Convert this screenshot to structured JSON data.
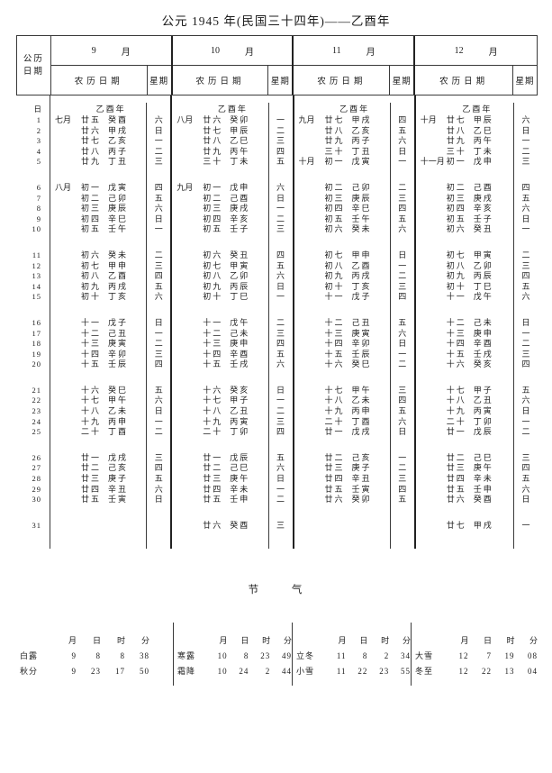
{
  "title": "公元 1945 年(民国三十四年)——乙酉年",
  "table": {
    "corner_line1": "公历",
    "corner_line2": "日期",
    "lunar_date_header": "农历日期",
    "weekday_header": "星期",
    "day_header": "日",
    "year_label": "乙酉年",
    "month_unit": "月",
    "day_numbers": [
      "1",
      "2",
      "3",
      "4",
      "5",
      "6",
      "7",
      "8",
      "9",
      "10",
      "11",
      "12",
      "13",
      "14",
      "15",
      "16",
      "17",
      "18",
      "19",
      "20",
      "21",
      "22",
      "23",
      "24",
      "25",
      "26",
      "27",
      "28",
      "29",
      "30",
      "31"
    ],
    "months": [
      {
        "number": "9",
        "rows": [
          [
            "七月",
            "廿五",
            "癸酉",
            "六"
          ],
          [
            "",
            "廿六",
            "甲戌",
            "日"
          ],
          [
            "",
            "廿七",
            "乙亥",
            "一"
          ],
          [
            "",
            "廿八",
            "丙子",
            "二"
          ],
          [
            "",
            "廿九",
            "丁丑",
            "三"
          ],
          [
            "八月",
            "初一",
            "戊寅",
            "四"
          ],
          [
            "",
            "初二",
            "己卯",
            "五"
          ],
          [
            "",
            "初三",
            "庚辰",
            "六"
          ],
          [
            "",
            "初四",
            "辛巳",
            "日"
          ],
          [
            "",
            "初五",
            "壬午",
            "一"
          ],
          [
            "",
            "初六",
            "癸未",
            "二"
          ],
          [
            "",
            "初七",
            "甲申",
            "三"
          ],
          [
            "",
            "初八",
            "乙酉",
            "四"
          ],
          [
            "",
            "初九",
            "丙戌",
            "五"
          ],
          [
            "",
            "初十",
            "丁亥",
            "六"
          ],
          [
            "",
            "十一",
            "戊子",
            "日"
          ],
          [
            "",
            "十二",
            "己丑",
            "一"
          ],
          [
            "",
            "十三",
            "庚寅",
            "二"
          ],
          [
            "",
            "十四",
            "辛卯",
            "三"
          ],
          [
            "",
            "十五",
            "壬辰",
            "四"
          ],
          [
            "",
            "十六",
            "癸巳",
            "五"
          ],
          [
            "",
            "十七",
            "甲午",
            "六"
          ],
          [
            "",
            "十八",
            "乙未",
            "日"
          ],
          [
            "",
            "十九",
            "丙申",
            "一"
          ],
          [
            "",
            "二十",
            "丁酉",
            "二"
          ],
          [
            "",
            "廿一",
            "戊戌",
            "三"
          ],
          [
            "",
            "廿二",
            "己亥",
            "四"
          ],
          [
            "",
            "廿三",
            "庚子",
            "五"
          ],
          [
            "",
            "廿四",
            "辛丑",
            "六"
          ],
          [
            "",
            "廿五",
            "壬寅",
            "日"
          ],
          [
            "",
            "",
            "",
            ""
          ]
        ]
      },
      {
        "number": "10",
        "rows": [
          [
            "八月",
            "廿六",
            "癸卯",
            "一"
          ],
          [
            "",
            "廿七",
            "甲辰",
            "二"
          ],
          [
            "",
            "廿八",
            "乙巳",
            "三"
          ],
          [
            "",
            "廿九",
            "丙午",
            "四"
          ],
          [
            "",
            "三十",
            "丁未",
            "五"
          ],
          [
            "九月",
            "初一",
            "戊申",
            "六"
          ],
          [
            "",
            "初二",
            "己酉",
            "日"
          ],
          [
            "",
            "初三",
            "庚戌",
            "一"
          ],
          [
            "",
            "初四",
            "辛亥",
            "二"
          ],
          [
            "",
            "初五",
            "壬子",
            "三"
          ],
          [
            "",
            "初六",
            "癸丑",
            "四"
          ],
          [
            "",
            "初七",
            "甲寅",
            "五"
          ],
          [
            "",
            "初八",
            "乙卯",
            "六"
          ],
          [
            "",
            "初九",
            "丙辰",
            "日"
          ],
          [
            "",
            "初十",
            "丁巳",
            "一"
          ],
          [
            "",
            "十一",
            "戊午",
            "二"
          ],
          [
            "",
            "十二",
            "己未",
            "三"
          ],
          [
            "",
            "十三",
            "庚申",
            "四"
          ],
          [
            "",
            "十四",
            "辛酉",
            "五"
          ],
          [
            "",
            "十五",
            "壬戌",
            "六"
          ],
          [
            "",
            "十六",
            "癸亥",
            "日"
          ],
          [
            "",
            "十七",
            "甲子",
            "一"
          ],
          [
            "",
            "十八",
            "乙丑",
            "二"
          ],
          [
            "",
            "十九",
            "丙寅",
            "三"
          ],
          [
            "",
            "二十",
            "丁卯",
            "四"
          ],
          [
            "",
            "廿一",
            "戊辰",
            "五"
          ],
          [
            "",
            "廿二",
            "己巳",
            "六"
          ],
          [
            "",
            "廿三",
            "庚午",
            "日"
          ],
          [
            "",
            "廿四",
            "辛未",
            "一"
          ],
          [
            "",
            "廿五",
            "壬申",
            "二"
          ],
          [
            "",
            "廿六",
            "癸酉",
            "三"
          ]
        ]
      },
      {
        "number": "11",
        "rows": [
          [
            "九月",
            "廿七",
            "甲戌",
            "四"
          ],
          [
            "",
            "廿八",
            "乙亥",
            "五"
          ],
          [
            "",
            "廿九",
            "丙子",
            "六"
          ],
          [
            "",
            "三十",
            "丁丑",
            "日"
          ],
          [
            "十月",
            "初一",
            "戊寅",
            "一"
          ],
          [
            "",
            "初二",
            "己卯",
            "二"
          ],
          [
            "",
            "初三",
            "庚辰",
            "三"
          ],
          [
            "",
            "初四",
            "辛巳",
            "四"
          ],
          [
            "",
            "初五",
            "壬午",
            "五"
          ],
          [
            "",
            "初六",
            "癸未",
            "六"
          ],
          [
            "",
            "初七",
            "甲申",
            "日"
          ],
          [
            "",
            "初八",
            "乙酉",
            "一"
          ],
          [
            "",
            "初九",
            "丙戌",
            "二"
          ],
          [
            "",
            "初十",
            "丁亥",
            "三"
          ],
          [
            "",
            "十一",
            "戊子",
            "四"
          ],
          [
            "",
            "十二",
            "己丑",
            "五"
          ],
          [
            "",
            "十三",
            "庚寅",
            "六"
          ],
          [
            "",
            "十四",
            "辛卯",
            "日"
          ],
          [
            "",
            "十五",
            "壬辰",
            "一"
          ],
          [
            "",
            "十六",
            "癸巳",
            "二"
          ],
          [
            "",
            "十七",
            "甲午",
            "三"
          ],
          [
            "",
            "十八",
            "乙未",
            "四"
          ],
          [
            "",
            "十九",
            "丙申",
            "五"
          ],
          [
            "",
            "二十",
            "丁酉",
            "六"
          ],
          [
            "",
            "廿一",
            "戊戌",
            "日"
          ],
          [
            "",
            "廿二",
            "己亥",
            "一"
          ],
          [
            "",
            "廿三",
            "庚子",
            "二"
          ],
          [
            "",
            "廿四",
            "辛丑",
            "三"
          ],
          [
            "",
            "廿五",
            "壬寅",
            "四"
          ],
          [
            "",
            "廿六",
            "癸卯",
            "五"
          ],
          [
            "",
            "",
            "",
            ""
          ]
        ]
      },
      {
        "number": "12",
        "rows": [
          [
            "十月",
            "廿七",
            "甲辰",
            "六"
          ],
          [
            "",
            "廿八",
            "乙巳",
            "日"
          ],
          [
            "",
            "廿九",
            "丙午",
            "一"
          ],
          [
            "",
            "三十",
            "丁未",
            "二"
          ],
          [
            "十一月",
            "初一",
            "戊申",
            "三"
          ],
          [
            "",
            "初二",
            "己酉",
            "四"
          ],
          [
            "",
            "初三",
            "庚戌",
            "五"
          ],
          [
            "",
            "初四",
            "辛亥",
            "六"
          ],
          [
            "",
            "初五",
            "壬子",
            "日"
          ],
          [
            "",
            "初六",
            "癸丑",
            "一"
          ],
          [
            "",
            "初七",
            "甲寅",
            "二"
          ],
          [
            "",
            "初八",
            "乙卯",
            "三"
          ],
          [
            "",
            "初九",
            "丙辰",
            "四"
          ],
          [
            "",
            "初十",
            "丁巳",
            "五"
          ],
          [
            "",
            "十一",
            "戊午",
            "六"
          ],
          [
            "",
            "十二",
            "己未",
            "日"
          ],
          [
            "",
            "十三",
            "庚申",
            "一"
          ],
          [
            "",
            "十四",
            "辛酉",
            "二"
          ],
          [
            "",
            "十五",
            "壬戌",
            "三"
          ],
          [
            "",
            "十六",
            "癸亥",
            "四"
          ],
          [
            "",
            "十七",
            "甲子",
            "五"
          ],
          [
            "",
            "十八",
            "乙丑",
            "六"
          ],
          [
            "",
            "十九",
            "丙寅",
            "日"
          ],
          [
            "",
            "二十",
            "丁卯",
            "一"
          ],
          [
            "",
            "廿一",
            "戊辰",
            "二"
          ],
          [
            "",
            "廿二",
            "己巳",
            "三"
          ],
          [
            "",
            "廿三",
            "庚午",
            "四"
          ],
          [
            "",
            "廿四",
            "辛未",
            "五"
          ],
          [
            "",
            "廿五",
            "壬申",
            "六"
          ],
          [
            "",
            "廿六",
            "癸酉",
            "日"
          ],
          [
            "",
            "廿七",
            "甲戌",
            "一"
          ]
        ]
      }
    ]
  },
  "solar_terms": {
    "title": "节 气",
    "col_headers": [
      "月",
      "日",
      "时",
      "分"
    ],
    "groups": [
      [
        {
          "name": "白露",
          "values": [
            "9",
            "8",
            "8",
            "38"
          ]
        },
        {
          "name": "秋分",
          "values": [
            "9",
            "23",
            "17",
            "50"
          ]
        }
      ],
      [
        {
          "name": "寒露",
          "values": [
            "10",
            "8",
            "23",
            "49"
          ]
        },
        {
          "name": "霜降",
          "values": [
            "10",
            "24",
            "2",
            "44"
          ]
        }
      ],
      [
        {
          "name": "立冬",
          "values": [
            "11",
            "8",
            "2",
            "34"
          ]
        },
        {
          "name": "小雪",
          "values": [
            "11",
            "22",
            "23",
            "55"
          ]
        }
      ],
      [
        {
          "name": "大雪",
          "values": [
            "12",
            "7",
            "19",
            "08"
          ]
        },
        {
          "name": "冬至",
          "values": [
            "12",
            "22",
            "13",
            "04"
          ]
        }
      ]
    ]
  }
}
